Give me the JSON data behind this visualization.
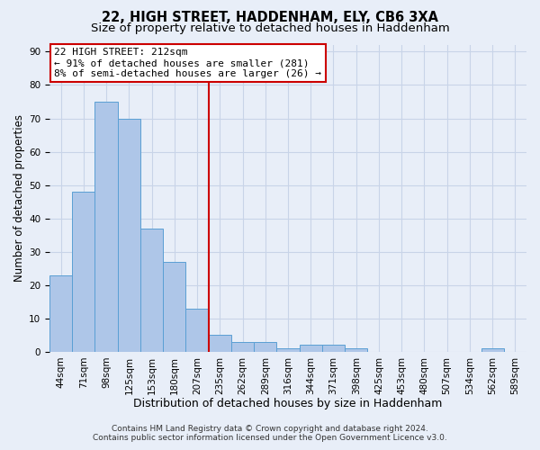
{
  "title1": "22, HIGH STREET, HADDENHAM, ELY, CB6 3XA",
  "title2": "Size of property relative to detached houses in Haddenham",
  "xlabel": "Distribution of detached houses by size in Haddenham",
  "ylabel": "Number of detached properties",
  "bar_labels": [
    "44sqm",
    "71sqm",
    "98sqm",
    "125sqm",
    "153sqm",
    "180sqm",
    "207sqm",
    "235sqm",
    "262sqm",
    "289sqm",
    "316sqm",
    "344sqm",
    "371sqm",
    "398sqm",
    "425sqm",
    "453sqm",
    "480sqm",
    "507sqm",
    "534sqm",
    "562sqm",
    "589sqm"
  ],
  "bar_values": [
    23,
    48,
    75,
    70,
    37,
    27,
    13,
    5,
    3,
    3,
    1,
    2,
    2,
    1,
    0,
    0,
    0,
    0,
    0,
    1,
    0
  ],
  "bar_color": "#aec6e8",
  "bar_edge_color": "#5a9fd4",
  "grid_color": "#c8d4e8",
  "background_color": "#e8eef8",
  "vline_x_index": 6,
  "vline_color": "#cc0000",
  "annotation_line1": "22 HIGH STREET: 212sqm",
  "annotation_line2": "← 91% of detached houses are smaller (281)",
  "annotation_line3": "8% of semi-detached houses are larger (26) →",
  "annotation_box_color": "#ffffff",
  "annotation_box_edge": "#cc0000",
  "ylim": [
    0,
    92
  ],
  "yticks": [
    0,
    10,
    20,
    30,
    40,
    50,
    60,
    70,
    80,
    90
  ],
  "footer1": "Contains HM Land Registry data © Crown copyright and database right 2024.",
  "footer2": "Contains public sector information licensed under the Open Government Licence v3.0.",
  "title1_fontsize": 10.5,
  "title2_fontsize": 9.5,
  "xlabel_fontsize": 9,
  "ylabel_fontsize": 8.5,
  "tick_fontsize": 7.5,
  "annotation_fontsize": 8,
  "footer_fontsize": 6.5
}
